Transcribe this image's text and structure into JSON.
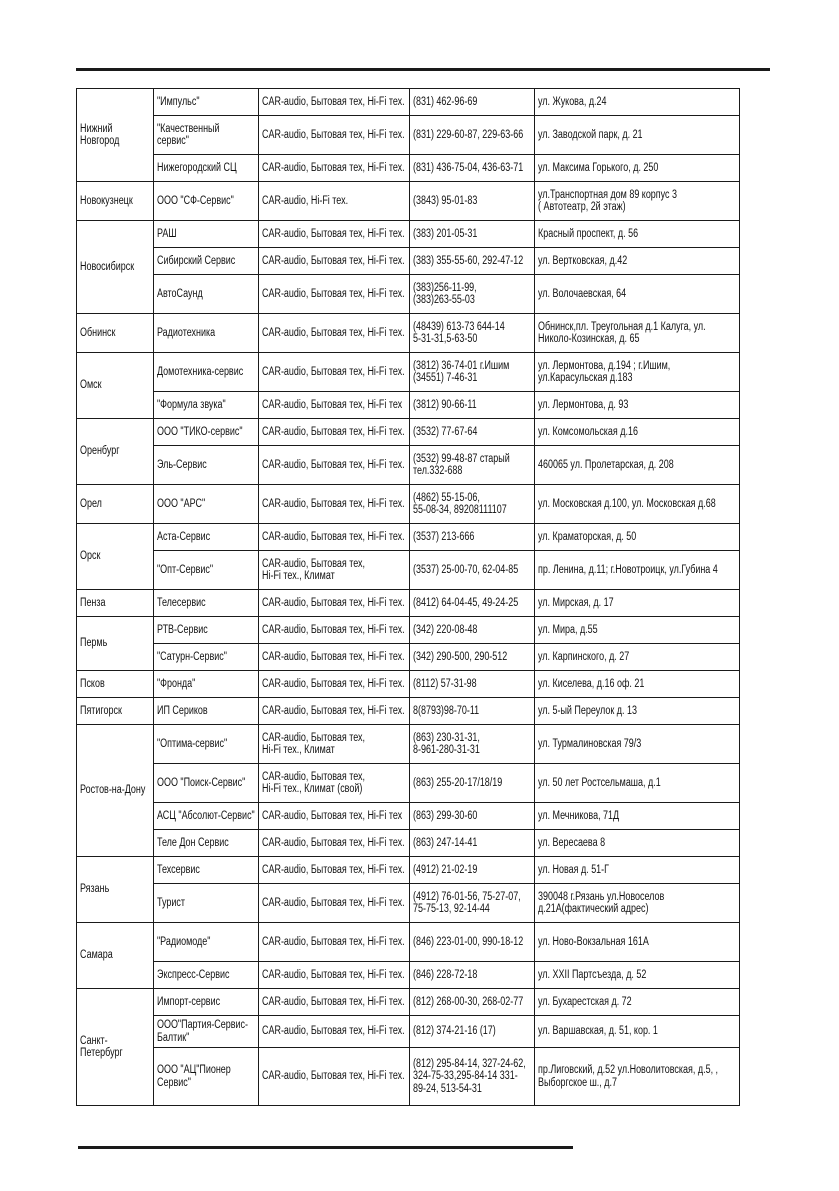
{
  "cities": [
    {
      "city": "Нижний\nНовгород",
      "rows": [
        {
          "name": "\"Импульс\"",
          "type": "CAR-audio,  Бытовая тех, Hi-Fi тех.",
          "phone": "(831) 462-96-69",
          "address": "ул. Жукова, д.24"
        },
        {
          "name": "\"Качественный\nсервис\"",
          "type": "CAR-audio,  Бытовая тех, Hi-Fi тех.",
          "phone": "(831) 229-60-87, 229-63-66",
          "address": "ул. Заводской парк, д. 21"
        },
        {
          "name": "Нижегородский СЦ",
          "type": "CAR-audio,  Бытовая тех, Hi-Fi тех.",
          "phone": "(831) 436-75-04, 436-63-71",
          "address": "ул. Максима Горького, д. 250"
        }
      ]
    },
    {
      "city": "Новокузнецк",
      "rows": [
        {
          "name": "ООО \"СФ-Сервис\"",
          "type": "CAR-audio,  Hi-Fi тех.",
          "phone": "(3843) 95-01-83",
          "address": "ул.Транспортная дом 89 корпус 3\n( Автотеатр, 2й этаж)"
        }
      ]
    },
    {
      "city": "Новосибирск",
      "rows": [
        {
          "name": "РАШ",
          "type": "CAR-audio,  Бытовая тех, Hi-Fi тех.",
          "phone": "(383) 201-05-31",
          "address": "Красный проспект, д. 56"
        },
        {
          "name": "Сибирский Сервис",
          "type": "CAR-audio,  Бытовая тех, Hi-Fi тех.",
          "phone": "(383) 355-55-60, 292-47-12",
          "address": "ул. Вертковская, д.42"
        },
        {
          "name": "АвтоСаунд",
          "type": "CAR-audio,  Бытовая тех, Hi-Fi тех.",
          "phone": "(383)256-11-99,\n(383)263-55-03",
          "address": "ул. Волочаевская, 64"
        }
      ]
    },
    {
      "city": "Обнинск",
      "rows": [
        {
          "name": "Радиотехника",
          "type": "CAR-audio,  Бытовая тех, Hi-Fi тех.",
          "phone": "(48439) 613-73  644-14\n5-31-31,5-63-50",
          "address": "Обнинск,пл. Треугольная д.1  Калуга, ул.\nНиколо-Козинская, д. 65"
        }
      ]
    },
    {
      "city": "Омск",
      "rows": [
        {
          "name": "Домотехника-сервис",
          "type": "CAR-audio,  Бытовая тех, Hi-Fi тех.",
          "phone": "(3812) 36-74-01 г.Ишим\n(34551) 7-46-31",
          "address": "ул. Лермонтова, д.194 ;   г.Ишим,\nул.Карасульская д.183"
        },
        {
          "name": "\"Формула звука\"",
          "type": "CAR-audio,  Бытовая тех, Hi-Fi тех",
          "phone": "(3812) 90-66-11",
          "address": "ул. Лермонтова, д. 93"
        }
      ]
    },
    {
      "city": "Оренбург",
      "rows": [
        {
          "name": "ООО \"ТИКО-сервис\"",
          "type": "CAR-audio,  Бытовая тех, Hi-Fi тех.",
          "phone": "(3532) 77-67-64",
          "address": "ул. Комсомольская д.16"
        },
        {
          "name": "Эль-Сервис",
          "type": "CAR-audio,  Бытовая тех, Hi-Fi тех.",
          "phone": "(3532) 99-48-87    старый\nтел.332-688",
          "address": "460065   ул. Пролетарская, д. 208"
        }
      ]
    },
    {
      "city": "Орел",
      "rows": [
        {
          "name": "ООО \"АРС\"",
          "type": "CAR-audio,  Бытовая тех, Hi-Fi тех.",
          "phone": "(4862) 55-15-06,\n55-08-34, 89208111107",
          "address": "ул. Московская д.100, ул. Московская д.68"
        }
      ]
    },
    {
      "city": "Орск",
      "rows": [
        {
          "name": "Аста-Сервис",
          "type": "CAR-audio,  Бытовая тех, Hi-Fi тех.",
          "phone": "(3537) 213-666",
          "address": "ул. Краматорская, д. 50"
        },
        {
          "name": "\"Опт-Сервис\"",
          "type": "CAR-audio,  Бытовая тех,\nHi-Fi тех., Климат",
          "phone": "(3537) 25-00-70, 62-04-85",
          "address": "пр. Ленина, д.11; г.Новотроицк, ул.Губина 4"
        }
      ]
    },
    {
      "city": "Пенза",
      "rows": [
        {
          "name": "Телесервис",
          "type": "CAR-audio,  Бытовая тех, Hi-Fi тех.",
          "phone": "(8412) 64-04-45, 49-24-25",
          "address": "ул. Мирская, д. 17"
        }
      ]
    },
    {
      "city": "Пермь",
      "rows": [
        {
          "name": "РТВ-Сервис",
          "type": "CAR-audio,  Бытовая тех, Hi-Fi тех.",
          "phone": "(342) 220-08-48",
          "address": "ул. Мира, д.55"
        },
        {
          "name": "\"Сатурн-Сервис\"",
          "type": "CAR-audio,  Бытовая тех, Hi-Fi тех.",
          "phone": "(342) 290-500, 290-512",
          "address": "ул. Карпинского, д. 27"
        }
      ]
    },
    {
      "city": "Псков",
      "rows": [
        {
          "name": "\"Фронда\"",
          "type": "CAR-audio,  Бытовая тех, Hi-Fi тех.",
          "phone": "(8112) 57-31-98",
          "address": "ул. Киселева, д.16 оф. 21"
        }
      ]
    },
    {
      "city": "Пятигорск",
      "rows": [
        {
          "name": "ИП Сериков",
          "type": "CAR-audio,  Бытовая тех, Hi-Fi тех.",
          "phone": "8(8793)98-70-11",
          "address": "ул. 5-ый Переулок д. 13"
        }
      ]
    },
    {
      "city": "Ростов-на-Дону",
      "rows": [
        {
          "name": "\"Оптима-сервис\"",
          "type": "CAR-audio,  Бытовая тех,\nHi-Fi тех., Климат",
          "phone": "(863) 230-31-31,\n8-961-280-31-31",
          "address": "ул. Турмалиновская 79/3"
        },
        {
          "name": "ООО \"Поиск-Сервис\"",
          "type": "CAR-audio,  Бытовая тех,\nHi-Fi тех., Климат (свой)",
          "phone": "(863) 255-20-17/18/19",
          "address": "ул. 50 лет Ростсельмаша, д.1"
        },
        {
          "name": "АСЦ \"Абсолют-Сервис\"",
          "type": "CAR-audio,  Бытовая тех, Hi-Fi тех",
          "phone": "(863) 299-30-60",
          "address": "ул. Мечникова, 71Д"
        },
        {
          "name": "Теле Дон Сервис",
          "type": "CAR-audio,  Бытовая тех, Hi-Fi тех.",
          "phone": "(863) 247-14-41",
          "address": "ул. Вересаева 8"
        }
      ]
    },
    {
      "city": "Рязань",
      "rows": [
        {
          "name": "Техсервис",
          "type": "CAR-audio,  Бытовая тех, Hi-Fi тех.",
          "phone": "(4912) 21-02-19",
          "address": "ул.  Новая  д. 51-Г"
        },
        {
          "name": "Турист",
          "type": "CAR-audio,  Бытовая тех, Hi-Fi тех.",
          "phone": "(4912) 76-01-56, 75-27-07,\n75-75-13, 92-14-44",
          "address": "390048 г.Рязань ул.Новоселов\nд.21А(фактический адрес)"
        }
      ]
    },
    {
      "city": "Самара",
      "rows": [
        {
          "name": "\"Радиомоде\"",
          "type": "CAR-audio,  Бытовая тех, Hi-Fi тех.",
          "phone": "(846) 223-01-00, 990-18-12",
          "address": "ул. Ново-Вокзальная 161А"
        },
        {
          "name": "Экспресс-Сервис",
          "type": "CAR-audio,  Бытовая тех, Hi-Fi тех.",
          "phone": "(846) 228-72-18",
          "address": "ул. XXII Партсъезда,  д. 52"
        }
      ]
    },
    {
      "city": "Санкт-\nПетербург",
      "rows": [
        {
          "name": "Импорт-сервис",
          "type": "CAR-audio,  Бытовая тех, Hi-Fi тех.",
          "phone": "(812) 268-00-30, 268-02-77",
          "address": "ул. Бухарестская д. 72"
        },
        {
          "name": "ООО\"Партия-Сервис-\nБалтик\"",
          "type": "CAR-audio,  Бытовая тех, Hi-Fi тех.",
          "phone": "(812) 374-21-16 (17)",
          "address": "ул. Варшавская, д. 51, кор. 1"
        },
        {
          "name": "ООО \"АЦ\"Пионер\nСервис\"",
          "type": "CAR-audio,  Бытовая тех, Hi-Fi тех.",
          "phone": "(812) 295-84-14, 327-24-62,\n324-75-33,295-84-14 331-\n89-24, 513-54-31",
          "address": "пр.Лиговский, д.52  ул.Новолитовская, д.5, ,\nВыборгское ш., д.7"
        }
      ]
    }
  ]
}
